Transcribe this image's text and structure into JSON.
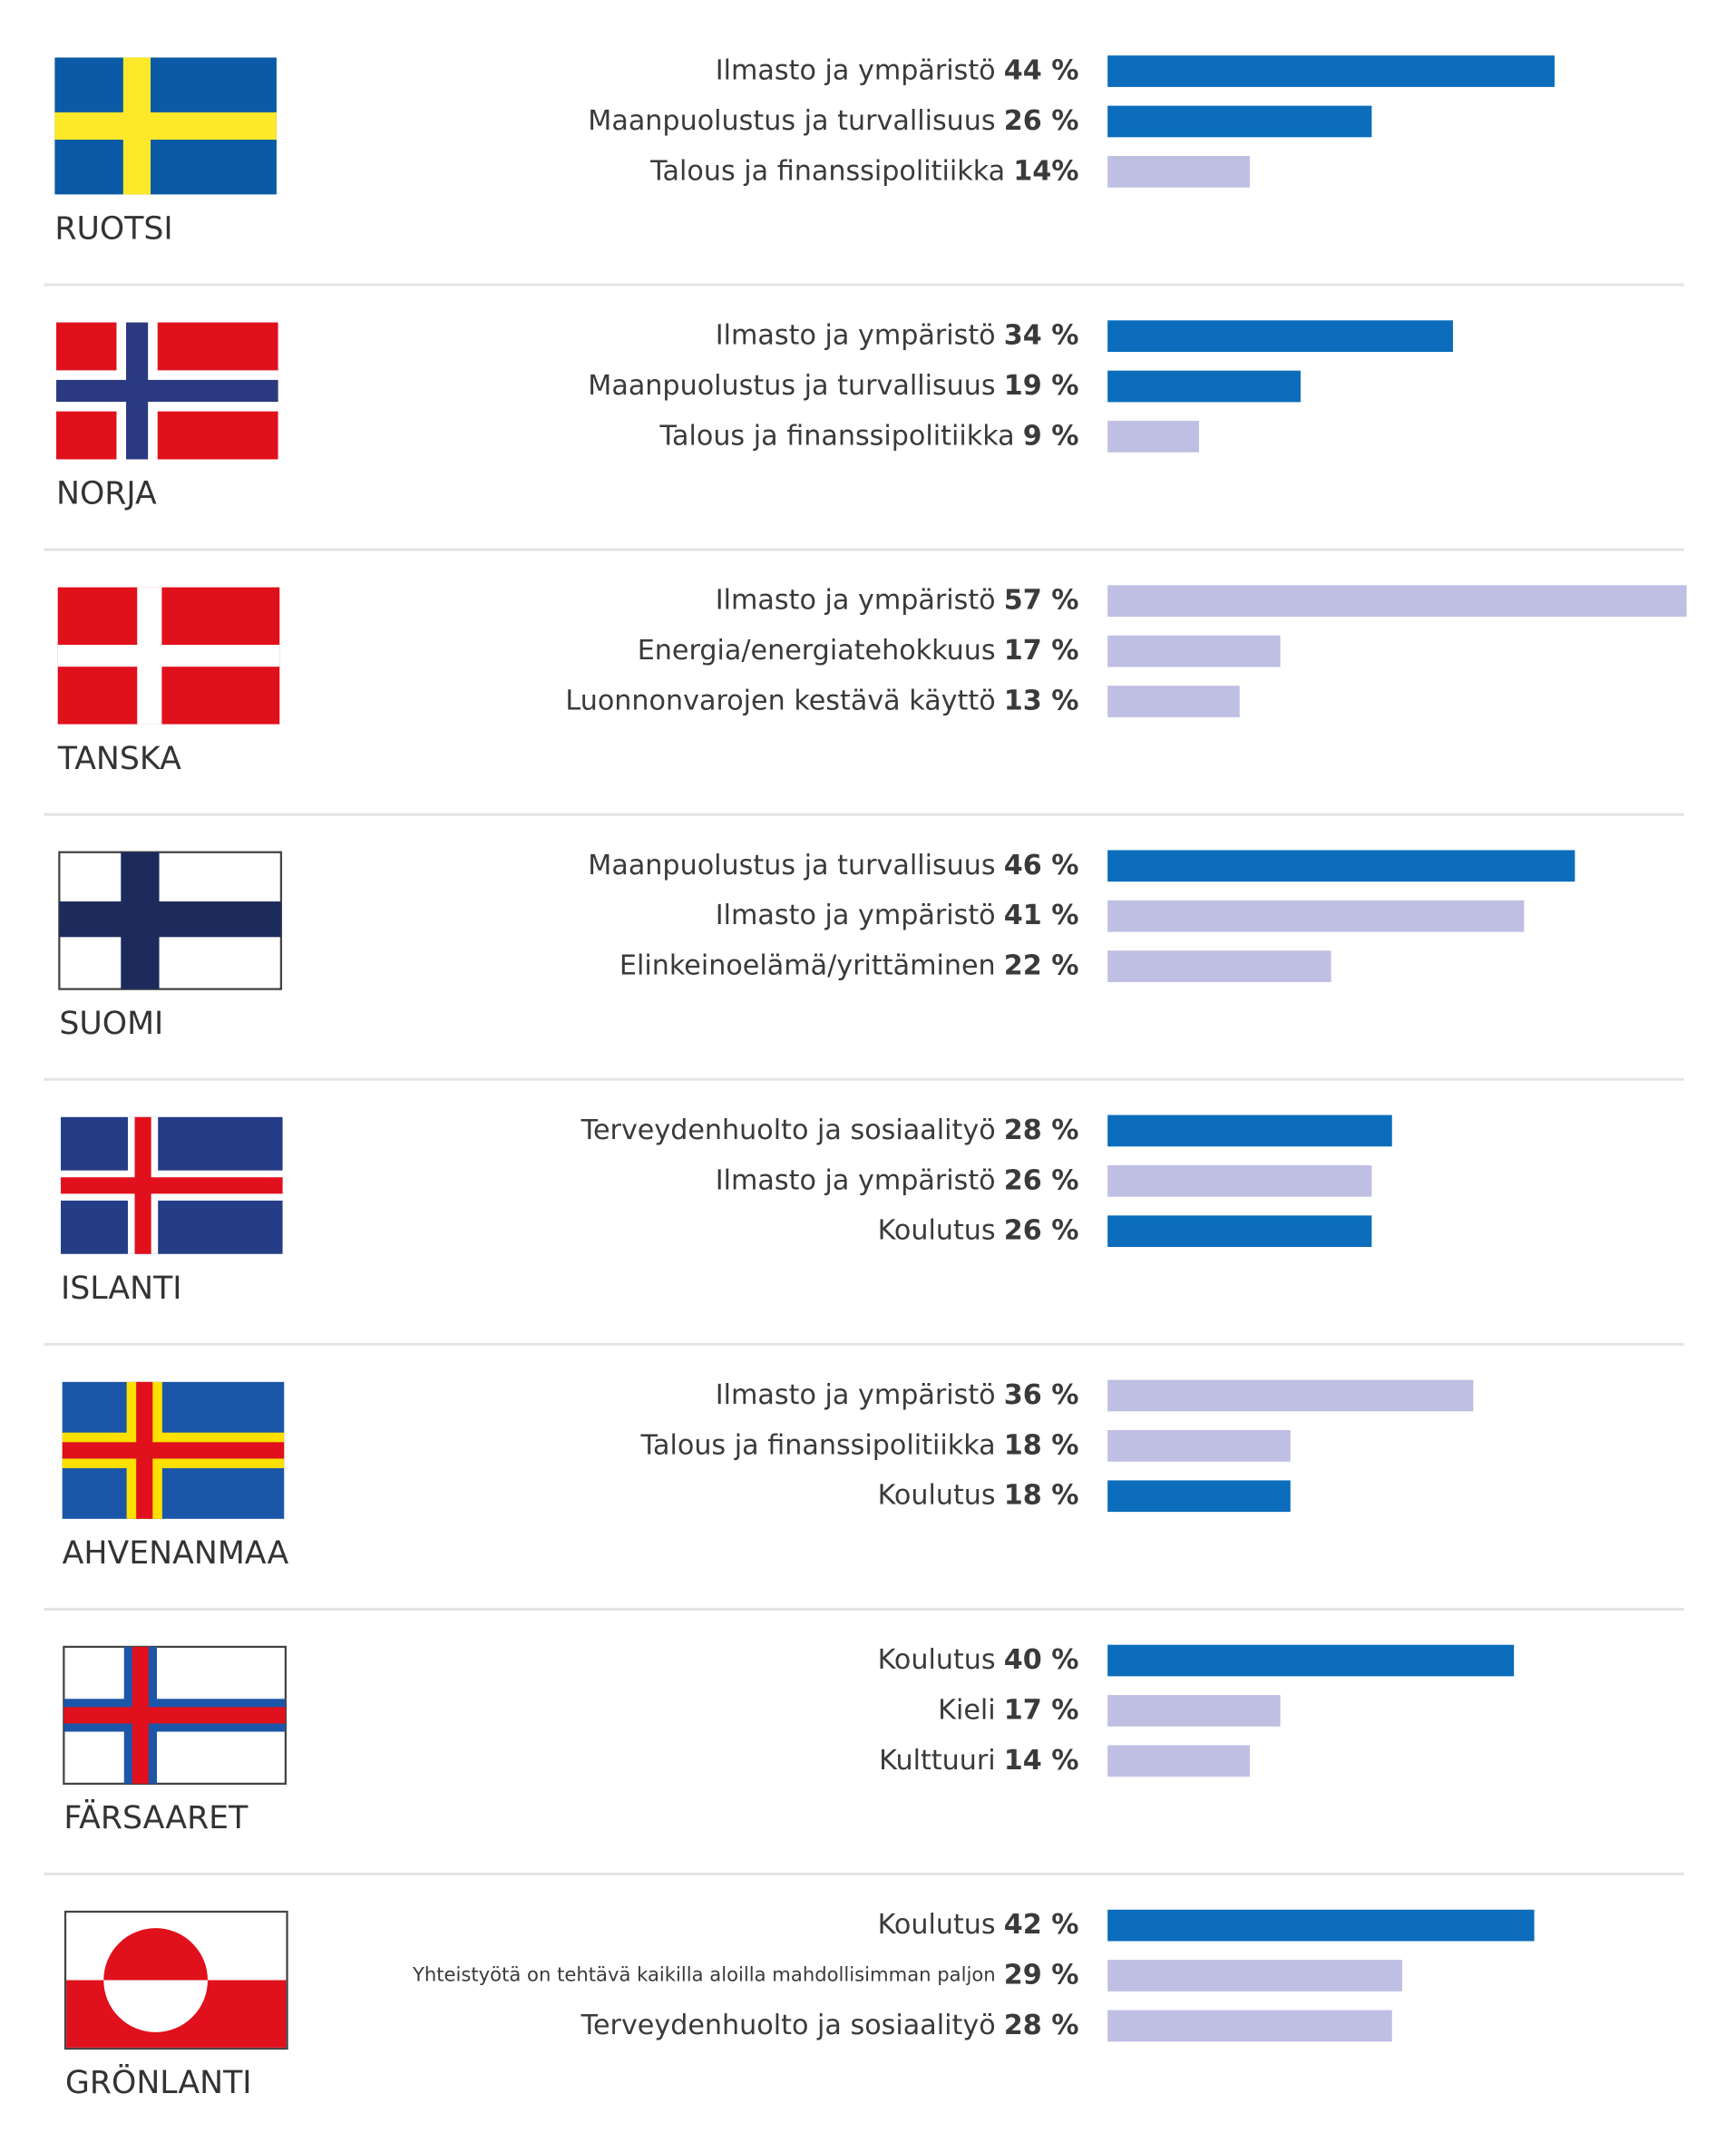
{
  "chart_data": [
    {
      "type": "bar",
      "title": "RUOTSI",
      "categories": [
        "Ilmasto ja ympäristö",
        "Maanpuolustus ja turvallisuus",
        "Talous ja finanssipolitiikka"
      ],
      "values": [
        44,
        26,
        14
      ],
      "value_labels": [
        "44 %",
        "26 %",
        "14%"
      ],
      "colors": [
        "#0b6dbb",
        "#0b6dbb",
        "#bfbee3"
      ]
    },
    {
      "type": "bar",
      "title": "NORJA",
      "categories": [
        "Ilmasto ja ympäristö",
        "Maanpuolustus ja turvallisuus",
        "Talous ja finanssipolitiikka"
      ],
      "values": [
        34,
        19,
        9
      ],
      "value_labels": [
        "34 %",
        "19 %",
        "9 %"
      ],
      "colors": [
        "#0b6dbb",
        "#0b6dbb",
        "#bfbee3"
      ]
    },
    {
      "type": "bar",
      "title": "TANSKA",
      "categories": [
        "Ilmasto ja ympäristö",
        "Energia/energiatehokkuus",
        "Luonnonvarojen kestävä käyttö"
      ],
      "values": [
        57,
        17,
        13
      ],
      "value_labels": [
        "57 %",
        "17 %",
        "13 %"
      ],
      "colors": [
        "#bfbee3",
        "#bfbee3",
        "#bfbee3"
      ]
    },
    {
      "type": "bar",
      "title": "SUOMI",
      "categories": [
        "Maanpuolustus ja turvallisuus",
        "Ilmasto ja ympäristö",
        "Elinkeinoelämä/yrittäminen"
      ],
      "values": [
        46,
        41,
        22
      ],
      "value_labels": [
        "46 %",
        "41 %",
        "22 %"
      ],
      "colors": [
        "#0b6dbb",
        "#bfbee3",
        "#bfbee3"
      ]
    },
    {
      "type": "bar",
      "title": "ISLANTI",
      "categories": [
        "Terveydenhuolto ja sosiaalityö",
        "Ilmasto ja ympäristö",
        "Koulutus"
      ],
      "values": [
        28,
        26,
        26
      ],
      "value_labels": [
        "28 %",
        "26 %",
        "26 %"
      ],
      "colors": [
        "#0b6dbb",
        "#bfbee3",
        "#0b6dbb"
      ]
    },
    {
      "type": "bar",
      "title": "AHVENANMAA",
      "categories": [
        "Ilmasto ja ympäristö",
        "Talous ja finanssipolitiikka",
        "Koulutus"
      ],
      "values": [
        36,
        18,
        18
      ],
      "value_labels": [
        "36 %",
        "18 %",
        "18 %"
      ],
      "colors": [
        "#bfbee3",
        "#bfbee3",
        "#0b6dbb"
      ]
    },
    {
      "type": "bar",
      "title": "FÄRSAARET",
      "categories": [
        "Koulutus",
        "Kieli",
        "Kulttuuri"
      ],
      "values": [
        40,
        17,
        14
      ],
      "value_labels": [
        "40 %",
        "17 %",
        "14 %"
      ],
      "colors": [
        "#0b6dbb",
        "#bfbee3",
        "#bfbee3"
      ]
    },
    {
      "type": "bar",
      "title": "GRÖNLANTI",
      "categories": [
        "Koulutus",
        "Yhteistyötä on tehtävä kaikilla aloilla mahdollisimman paljon",
        "Terveydenhuolto ja sosiaalityö"
      ],
      "values": [
        42,
        29,
        28
      ],
      "value_labels": [
        "42 %",
        "29 %",
        "28 %"
      ],
      "colors": [
        "#0b6dbb",
        "#bfbee3",
        "#bfbee3"
      ]
    }
  ]
}
